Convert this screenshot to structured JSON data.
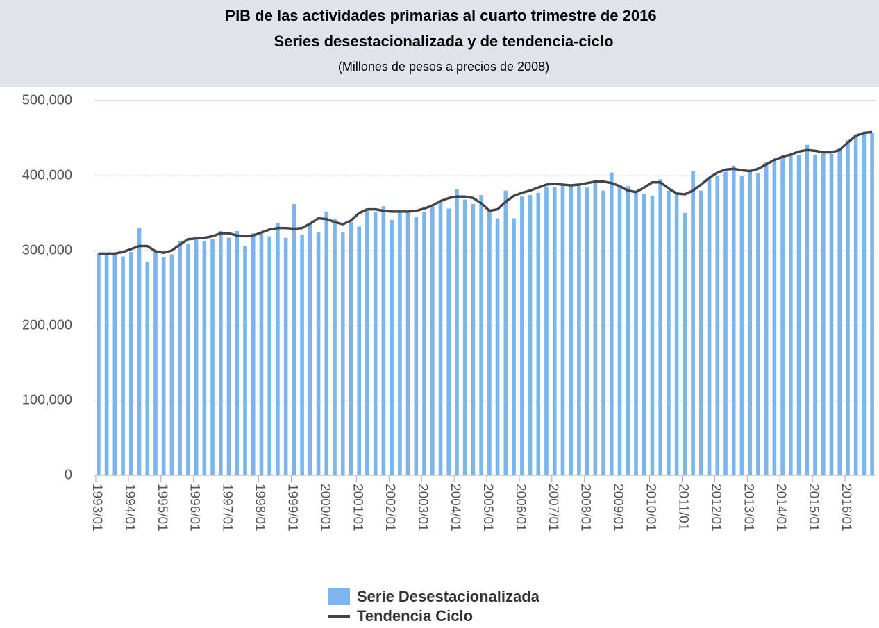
{
  "chart_data": {
    "type": "bar_line",
    "title": "PIB de las actividades primarias al cuarto trimestre de 2016",
    "subtitle": "Series desestacionalizada y de tendencia-ciclo",
    "note": "(Millones de pesos a precios de 2008)",
    "categories": [
      "1993/01",
      null,
      null,
      null,
      "1994/01",
      null,
      null,
      null,
      "1995/01",
      null,
      null,
      null,
      "1996/01",
      null,
      null,
      null,
      "1997/01",
      null,
      null,
      null,
      "1998/01",
      null,
      null,
      null,
      "1999/01",
      null,
      null,
      null,
      "2000/01",
      null,
      null,
      null,
      "2001/01",
      null,
      null,
      null,
      "2002/01",
      null,
      null,
      null,
      "2003/01",
      null,
      null,
      null,
      "2004/01",
      null,
      null,
      null,
      "2005/01",
      null,
      null,
      null,
      "2006/01",
      null,
      null,
      null,
      "2007/01",
      null,
      null,
      null,
      "2008/01",
      null,
      null,
      null,
      "2009/01",
      null,
      null,
      null,
      "2010/01",
      null,
      null,
      null,
      "2011/01",
      null,
      null,
      null,
      "2012/01",
      null,
      null,
      null,
      "2013/01",
      null,
      null,
      null,
      "2014/01",
      null,
      null,
      null,
      "2015/01",
      null,
      null,
      null,
      "2016/01",
      null,
      null,
      null
    ],
    "series": [
      {
        "name": "Serie Desestacionalizada",
        "kind": "bar",
        "color": "#7cb5ec",
        "values": [
          297000,
          297000,
          297000,
          292000,
          298000,
          330000,
          285000,
          300000,
          291000,
          295000,
          313000,
          309000,
          314000,
          313000,
          315000,
          326000,
          317000,
          326000,
          306000,
          323000,
          323000,
          319000,
          337000,
          317000,
          362000,
          321000,
          337000,
          324000,
          352000,
          342000,
          324000,
          338000,
          332000,
          353000,
          351000,
          359000,
          341000,
          351000,
          353000,
          345000,
          352000,
          358000,
          366000,
          356000,
          382000,
          368000,
          362000,
          374000,
          355000,
          343000,
          380000,
          343000,
          372000,
          374000,
          377000,
          385000,
          385000,
          388000,
          387000,
          388000,
          384000,
          391000,
          380000,
          404000,
          386000,
          386000,
          377000,
          375000,
          373000,
          395000,
          380000,
          375000,
          350000,
          406000,
          380000,
          396000,
          400000,
          405000,
          413000,
          399000,
          407000,
          403000,
          418000,
          421000,
          425000,
          429000,
          427000,
          441000,
          428000,
          430000,
          429000,
          437000,
          447000,
          455000,
          458000,
          457000
        ]
      },
      {
        "name": "Tendencia Ciclo",
        "kind": "line",
        "color": "#434348",
        "values": [
          296000,
          296000,
          296000,
          298000,
          302000,
          306000,
          306000,
          299000,
          297000,
          300000,
          308000,
          315000,
          316000,
          317000,
          319000,
          323000,
          323000,
          320000,
          319000,
          320000,
          324000,
          328000,
          330000,
          330000,
          329000,
          330000,
          336000,
          343000,
          342000,
          338000,
          335000,
          340000,
          350000,
          355000,
          355000,
          353000,
          352000,
          352000,
          352000,
          353000,
          356000,
          360000,
          366000,
          370000,
          372000,
          372000,
          370000,
          363000,
          353000,
          355000,
          365000,
          373000,
          377000,
          380000,
          384000,
          388000,
          389000,
          388000,
          387000,
          388000,
          390000,
          392000,
          392000,
          390000,
          386000,
          380000,
          378000,
          384000,
          391000,
          391000,
          383000,
          376000,
          375000,
          380000,
          388000,
          397000,
          404000,
          408000,
          409000,
          407000,
          406000,
          409000,
          415000,
          421000,
          425000,
          428000,
          432000,
          434000,
          433000,
          431000,
          431000,
          434000,
          444000,
          453000,
          457000,
          458000
        ]
      }
    ],
    "ylim": [
      0,
      500000
    ],
    "yticks": [
      0,
      {
        "value": 100000,
        "label": "100,000"
      },
      {
        "value": 200000,
        "label": "200,000"
      },
      {
        "value": 300000,
        "label": "300,000"
      },
      {
        "value": 400000,
        "label": "400,000"
      },
      {
        "value": 500000,
        "label": "500,000"
      }
    ],
    "grid": true
  }
}
